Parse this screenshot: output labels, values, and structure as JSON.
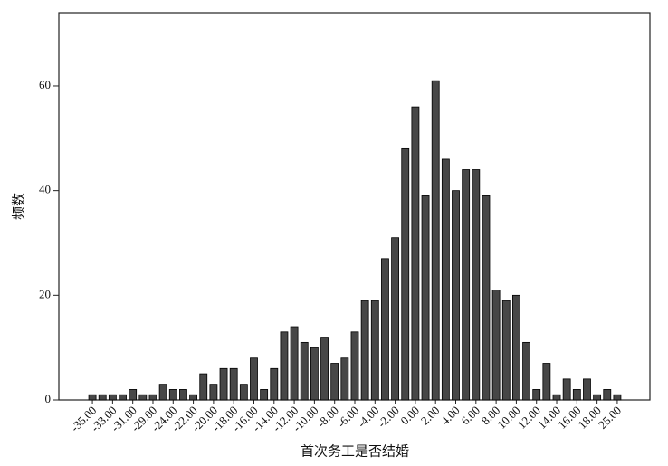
{
  "chart_data": {
    "type": "bar",
    "categories": [
      "-35.00",
      null,
      "-33.00",
      null,
      "-31.00",
      null,
      "-29.00",
      null,
      "-24.00",
      null,
      "-22.00",
      null,
      "-20.00",
      null,
      "-18.00",
      null,
      "-16.00",
      null,
      "-14.00",
      null,
      "-12.00",
      null,
      "-10.00",
      null,
      "-8.00",
      null,
      "-6.00",
      null,
      "-4.00",
      null,
      "-2.00",
      null,
      "0.00",
      null,
      "2.00",
      null,
      "4.00",
      null,
      "6.00",
      null,
      "8.00",
      null,
      "10.00",
      null,
      "12.00",
      null,
      "14.00",
      null,
      "16.00",
      null,
      "18.00",
      null,
      "25.00"
    ],
    "values": [
      1,
      1,
      1,
      1,
      2,
      1,
      1,
      3,
      2,
      2,
      1,
      5,
      3,
      6,
      6,
      3,
      8,
      2,
      6,
      13,
      14,
      11,
      10,
      12,
      7,
      8,
      13,
      19,
      19,
      27,
      31,
      48,
      56,
      39,
      61,
      46,
      40,
      44,
      44,
      39,
      21,
      19,
      20,
      11,
      2,
      7,
      1,
      4,
      2,
      4,
      1,
      2,
      1
    ],
    "color": "#474747",
    "xlabel": "首次务工是否结婚",
    "ylabel": "频数",
    "ylim": [
      0,
      74
    ],
    "yticks": [
      0,
      20,
      40,
      60
    ],
    "grid": false
  }
}
